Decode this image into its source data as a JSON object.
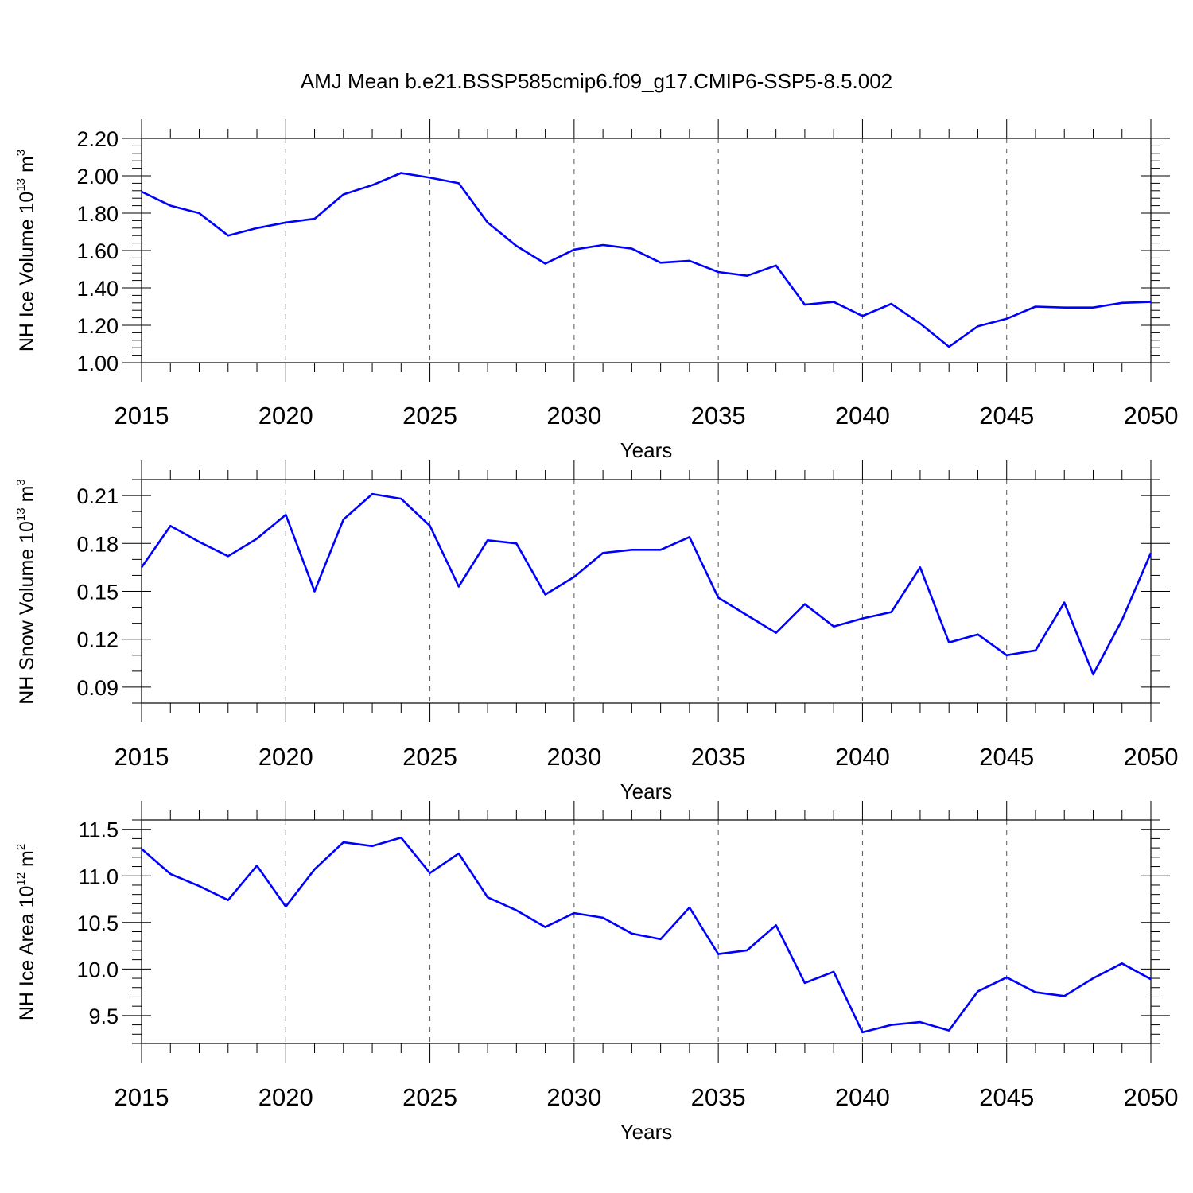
{
  "figure_title": "AMJ Mean b.e21.BSSP585cmip6.f09_g17.CMIP6-SSP5-8.5.002",
  "colors": {
    "line": "#0000ff",
    "grid": "#555555",
    "axis": "#000000"
  },
  "chart_data": [
    {
      "type": "line",
      "title": "AMJ Mean b.e21.BSSP585cmip6.f09_g17.CMIP6-SSP5-8.5.002",
      "ylabel": "NH Ice Volume 10",
      "ylabel_exp": "13",
      "ylabel_unit": " m",
      "ylabel_unit_exp": "3",
      "xlabel": "Years",
      "xlim": [
        2015,
        2050
      ],
      "ylim": [
        1.0,
        2.2
      ],
      "yticks": [
        1.0,
        1.2,
        1.4,
        1.6,
        1.8,
        2.0,
        2.2
      ],
      "ytick_labels": [
        "1.00",
        "1.20",
        "1.40",
        "1.60",
        "1.80",
        "2.00",
        "2.20"
      ],
      "yminor_step": 0.04,
      "xticks": [
        2015,
        2020,
        2025,
        2030,
        2035,
        2040,
        2045,
        2050
      ],
      "xtick_labels": [
        "2015",
        "2020",
        "2025",
        "2030",
        "2035",
        "2040",
        "2045",
        "2050"
      ],
      "grid": "vertical dashed",
      "x": [
        2015,
        2016,
        2017,
        2018,
        2019,
        2020,
        2021,
        2022,
        2023,
        2024,
        2025,
        2026,
        2027,
        2028,
        2029,
        2030,
        2031,
        2032,
        2033,
        2034,
        2035,
        2036,
        2037,
        2038,
        2039,
        2040,
        2041,
        2042,
        2043,
        2044,
        2045,
        2046,
        2047,
        2048,
        2049,
        2050
      ],
      "series": [
        {
          "name": "NH Ice Volume",
          "values": [
            1.915,
            1.84,
            1.8,
            1.68,
            1.72,
            1.75,
            1.77,
            1.9,
            1.95,
            2.015,
            1.99,
            1.96,
            1.75,
            1.625,
            1.53,
            1.605,
            1.63,
            1.61,
            1.535,
            1.545,
            1.485,
            1.465,
            1.52,
            1.31,
            1.325,
            1.25,
            1.315,
            1.21,
            1.085,
            1.195,
            1.235,
            1.3,
            1.295,
            1.295,
            1.32,
            1.325
          ]
        }
      ]
    },
    {
      "type": "line",
      "ylabel": "NH Snow Volume 10",
      "ylabel_exp": "13",
      "ylabel_unit": " m",
      "ylabel_unit_exp": "3",
      "xlabel": "Years",
      "xlim": [
        2015,
        2050
      ],
      "ylim": [
        0.08,
        0.22
      ],
      "yticks": [
        0.09,
        0.12,
        0.15,
        0.18,
        0.21
      ],
      "ytick_labels": [
        "0.09",
        "0.12",
        "0.15",
        "0.18",
        "0.21"
      ],
      "yminor_step": 0.01,
      "xticks": [
        2015,
        2020,
        2025,
        2030,
        2035,
        2040,
        2045,
        2050
      ],
      "xtick_labels": [
        "2015",
        "2020",
        "2025",
        "2030",
        "2035",
        "2040",
        "2045",
        "2050"
      ],
      "grid": "vertical dashed",
      "x": [
        2015,
        2016,
        2017,
        2018,
        2019,
        2020,
        2021,
        2022,
        2023,
        2024,
        2025,
        2026,
        2027,
        2028,
        2029,
        2030,
        2031,
        2032,
        2033,
        2034,
        2035,
        2036,
        2037,
        2038,
        2039,
        2040,
        2041,
        2042,
        2043,
        2044,
        2045,
        2046,
        2047,
        2048,
        2049,
        2050
      ],
      "series": [
        {
          "name": "NH Snow Volume",
          "values": [
            0.165,
            0.191,
            0.181,
            0.172,
            0.183,
            0.198,
            0.15,
            0.195,
            0.211,
            0.208,
            0.191,
            0.153,
            0.182,
            0.18,
            0.148,
            0.159,
            0.174,
            0.176,
            0.176,
            0.184,
            0.146,
            0.135,
            0.124,
            0.142,
            0.128,
            0.133,
            0.137,
            0.165,
            0.118,
            0.123,
            0.11,
            0.113,
            0.143,
            0.098,
            0.132,
            0.174
          ]
        }
      ]
    },
    {
      "type": "line",
      "ylabel": "NH Ice Area 10",
      "ylabel_exp": "12",
      "ylabel_unit": " m",
      "ylabel_unit_exp": "2",
      "xlabel": "Years",
      "xlim": [
        2015,
        2050
      ],
      "ylim": [
        9.2,
        11.6
      ],
      "yticks": [
        9.5,
        10.0,
        10.5,
        11.0,
        11.5
      ],
      "ytick_labels": [
        "9.5",
        "10.0",
        "10.5",
        "11.0",
        "11.5"
      ],
      "yminor_step": 0.1,
      "xticks": [
        2015,
        2020,
        2025,
        2030,
        2035,
        2040,
        2045,
        2050
      ],
      "xtick_labels": [
        "2015",
        "2020",
        "2025",
        "2030",
        "2035",
        "2040",
        "2045",
        "2050"
      ],
      "grid": "vertical dashed",
      "x": [
        2015,
        2016,
        2017,
        2018,
        2019,
        2020,
        2021,
        2022,
        2023,
        2024,
        2025,
        2026,
        2027,
        2028,
        2029,
        2030,
        2031,
        2032,
        2033,
        2034,
        2035,
        2036,
        2037,
        2038,
        2039,
        2040,
        2041,
        2042,
        2043,
        2044,
        2045,
        2046,
        2047,
        2048,
        2049,
        2050
      ],
      "series": [
        {
          "name": "NH Ice Area",
          "values": [
            11.29,
            11.02,
            10.89,
            10.74,
            11.11,
            10.67,
            11.07,
            11.36,
            11.32,
            11.41,
            11.03,
            11.24,
            10.77,
            10.63,
            10.45,
            10.6,
            10.55,
            10.38,
            10.32,
            10.66,
            10.16,
            10.2,
            10.47,
            9.85,
            9.97,
            9.32,
            9.4,
            9.43,
            9.34,
            9.76,
            9.91,
            9.75,
            9.71,
            9.9,
            10.06,
            9.89
          ]
        }
      ]
    }
  ]
}
